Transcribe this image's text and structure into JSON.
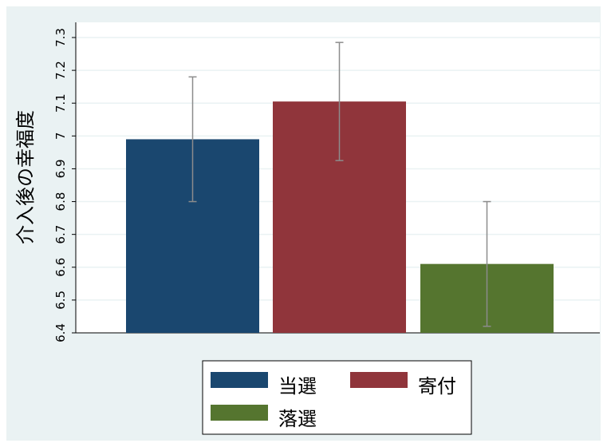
{
  "chart_data": {
    "type": "bar",
    "title": "",
    "xlabel": "",
    "ylabel": "介入後の幸福度",
    "ylim": [
      6.4,
      7.3
    ],
    "yticks": [
      6.4,
      6.5,
      6.6,
      6.7,
      6.8,
      6.9,
      7,
      7.1,
      7.2,
      7.3
    ],
    "grid": true,
    "legend_position": "bottom",
    "series": [
      {
        "name": "当選",
        "value": 6.99,
        "ci_low": 6.8,
        "ci_high": 7.18,
        "color": "#1a476f"
      },
      {
        "name": "寄付",
        "value": 7.105,
        "ci_low": 6.925,
        "ci_high": 7.285,
        "color": "#90353b"
      },
      {
        "name": "落選",
        "value": 6.61,
        "ci_low": 6.42,
        "ci_high": 6.8,
        "color": "#55752f"
      }
    ],
    "colors": {
      "background": "#eaf2f3",
      "plot_background": "#ffffff",
      "grid": "#eaf2f3",
      "error_bar": "#8c8c8c"
    }
  }
}
